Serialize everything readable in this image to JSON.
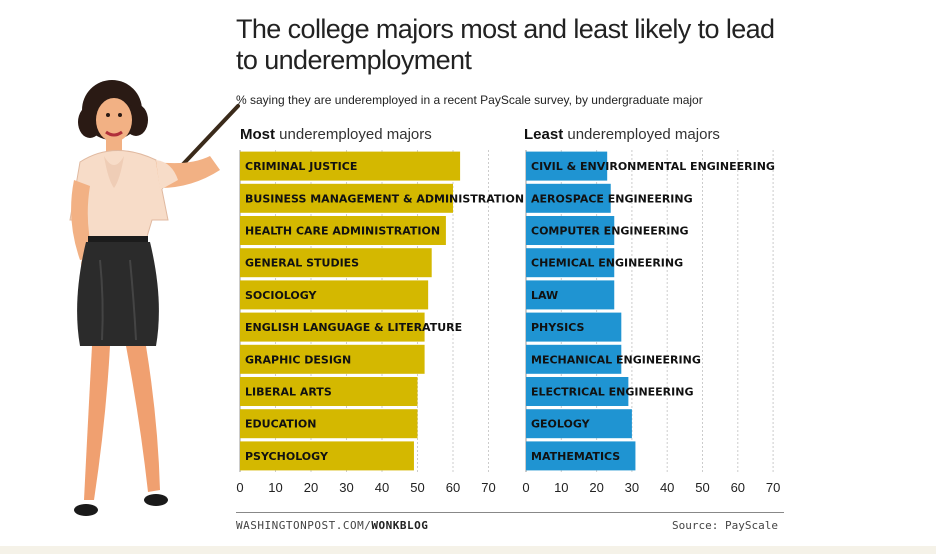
{
  "title": "The college majors most and least likely to lead to underemployment",
  "subtitle": "% saying they are underemployed in a recent PayScale survey, by undergraduate major",
  "credit_prefix": "WASHINGTONPOST.COM/",
  "credit_bold": "WONKBLOG",
  "source": "Source: PayScale",
  "colors": {
    "most": "#d4b800",
    "least": "#1f94d2",
    "grid": "#cccccc"
  },
  "chart_data": [
    {
      "type": "bar",
      "orientation": "horizontal",
      "title_bold": "Most",
      "title_rest": " underemployed majors",
      "categories": [
        "CRIMINAL JUSTICE",
        "BUSINESS MANAGEMENT & ADMINISTRATION",
        "HEALTH CARE ADMINISTRATION",
        "GENERAL STUDIES",
        "SOCIOLOGY",
        "ENGLISH LANGUAGE & LITERATURE",
        "GRAPHIC DESIGN",
        "LIBERAL ARTS",
        "EDUCATION",
        "PSYCHOLOGY"
      ],
      "values": [
        62,
        60,
        58,
        54,
        53,
        52,
        52,
        50,
        50,
        49
      ],
      "xlim": [
        0,
        70
      ],
      "ticks": [
        0,
        10,
        20,
        30,
        40,
        50,
        60,
        70
      ],
      "grid": true
    },
    {
      "type": "bar",
      "orientation": "horizontal",
      "title_bold": "Least",
      "title_rest": " underemployed majors",
      "categories": [
        "CIVIL & ENVIRONMENTAL ENGINEERING",
        "AEROSPACE ENGINEERING",
        "COMPUTER ENGINEERING",
        "CHEMICAL ENGINEERING",
        "LAW",
        "PHYSICS",
        "MECHANICAL ENGINEERING",
        "ELECTRICAL ENGINEERING",
        "GEOLOGY",
        "MATHEMATICS"
      ],
      "values": [
        23,
        24,
        25,
        25,
        25,
        27,
        27,
        29,
        30,
        31
      ],
      "xlim": [
        0,
        70
      ],
      "ticks": [
        0,
        10,
        20,
        30,
        40,
        50,
        60,
        70
      ],
      "grid": true
    }
  ]
}
